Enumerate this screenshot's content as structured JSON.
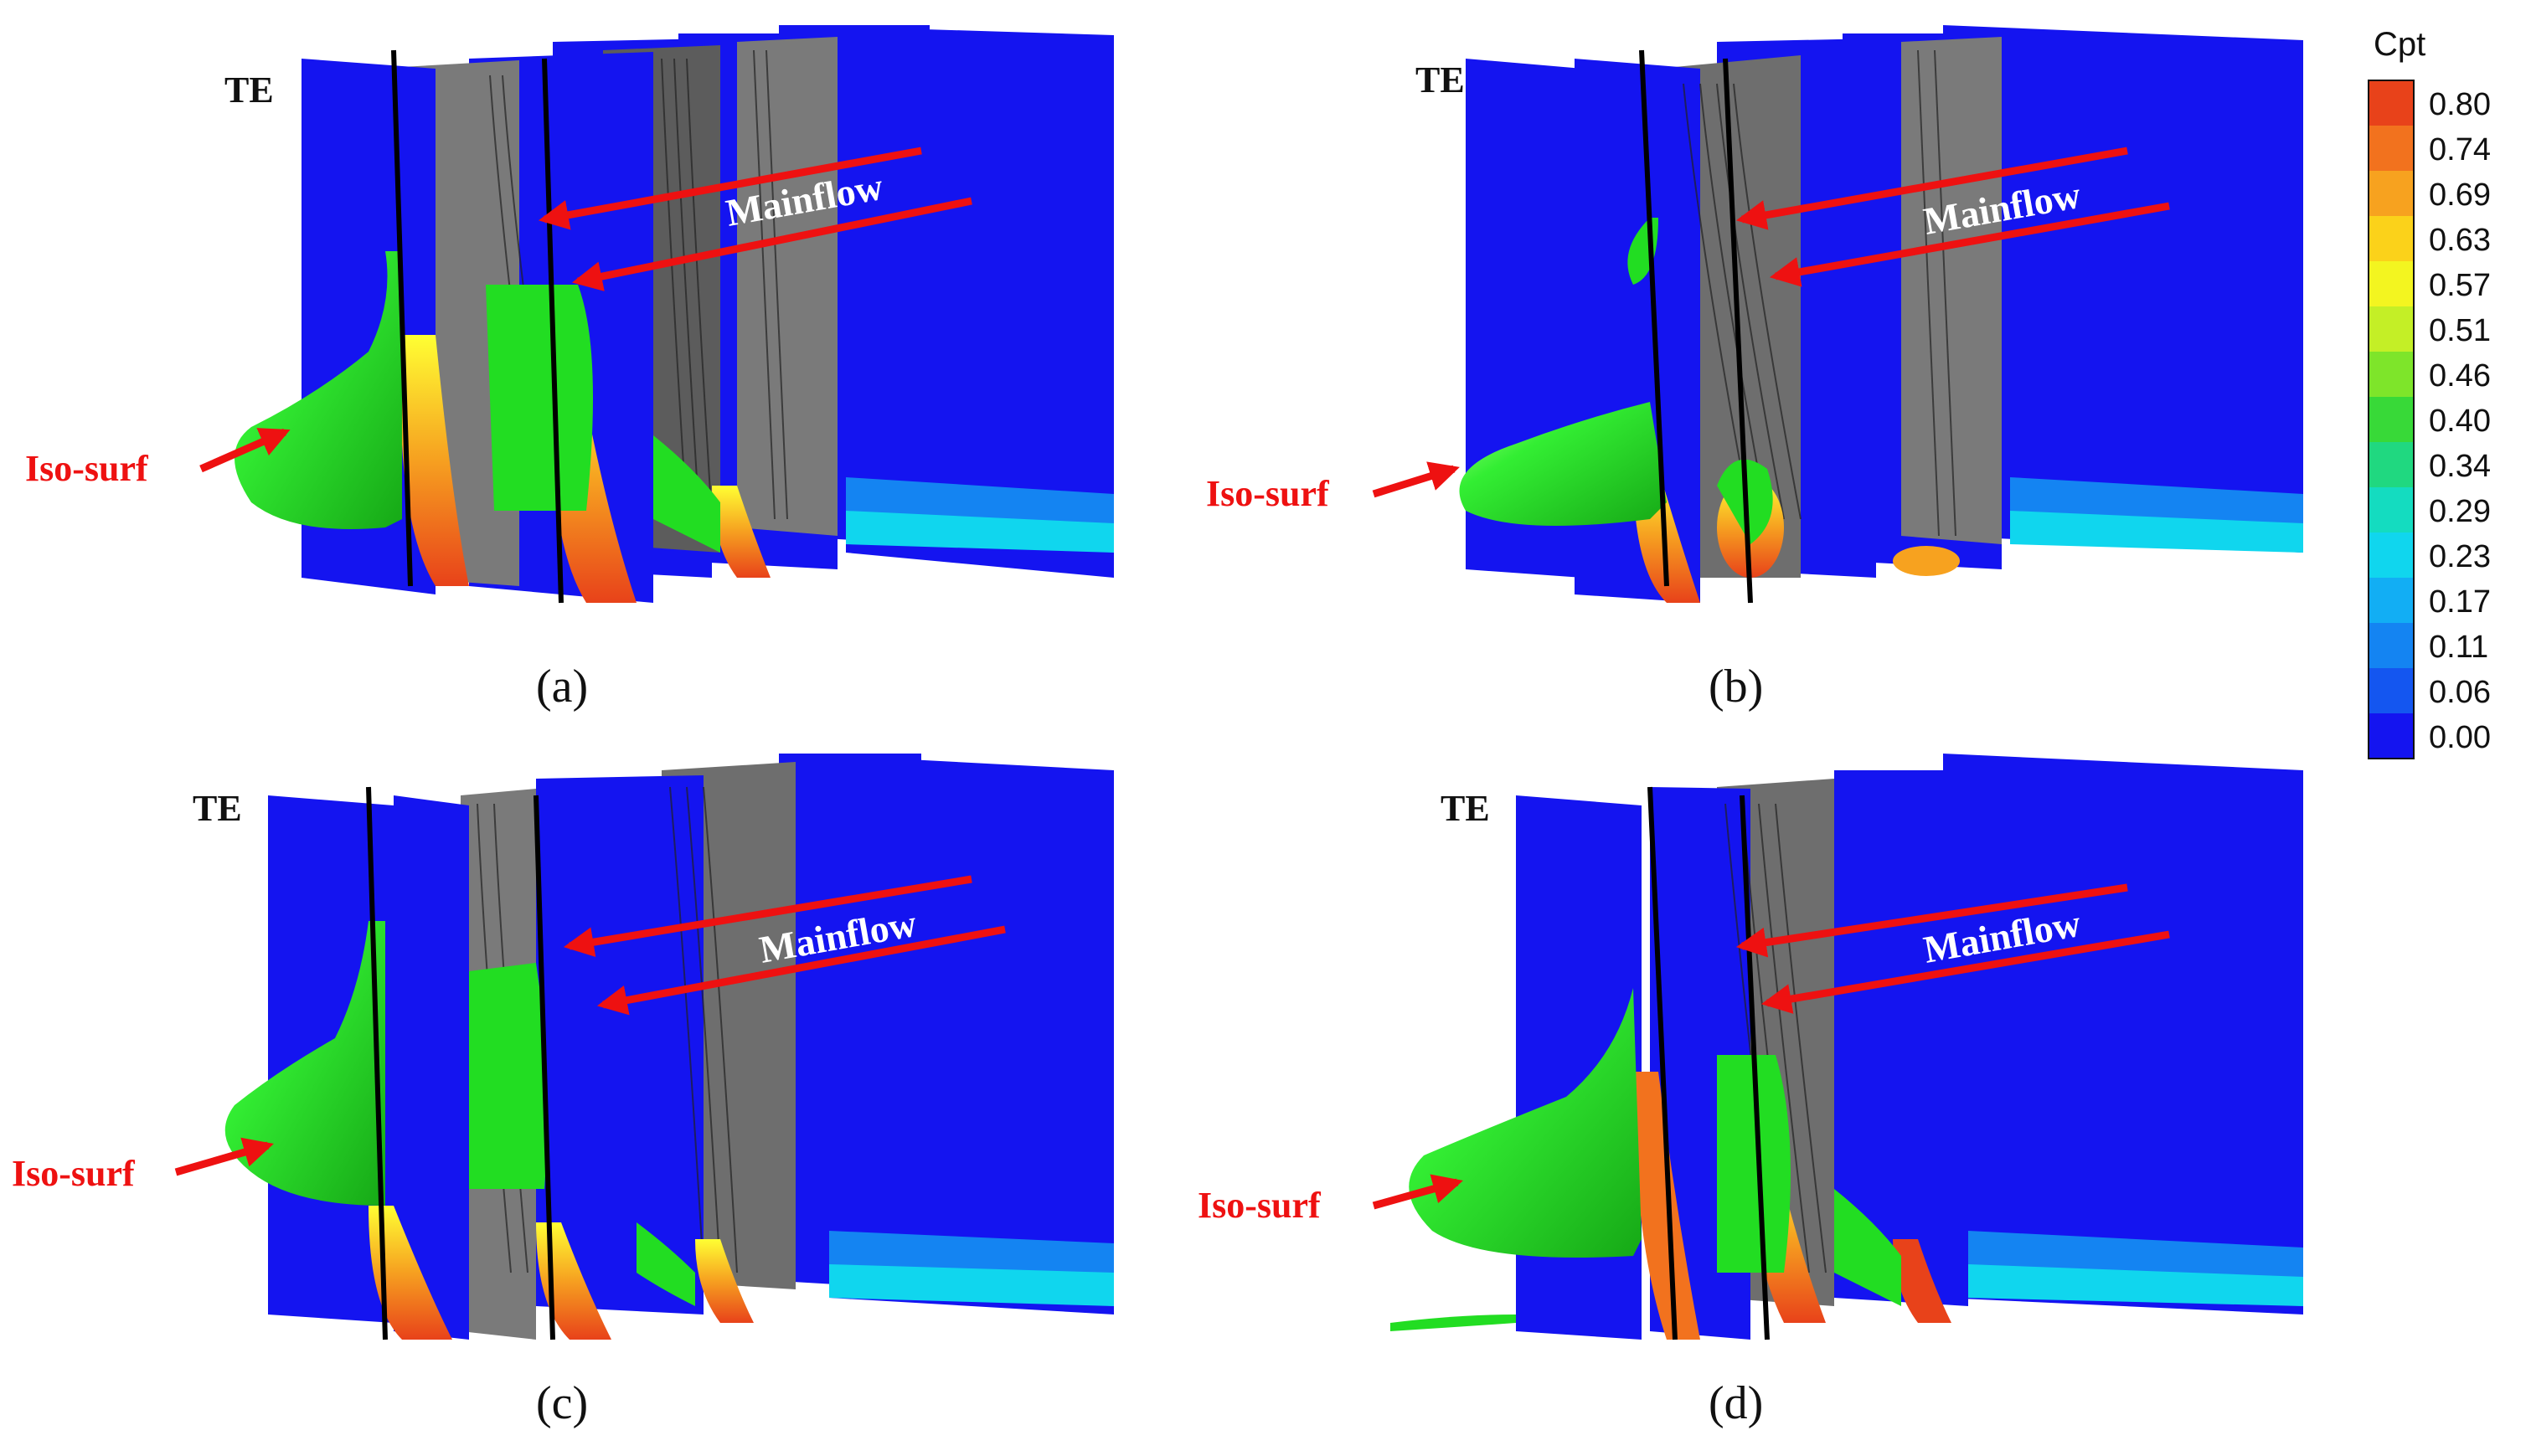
{
  "colors": {
    "blade_blue": "#1414f0",
    "gray_surface": "#7a7a7a",
    "dark_gray": "#3c3c3c",
    "isosurface_green": "#22dd22",
    "arrow_red": "#ee1111",
    "mainflow_text": "#ffffff"
  },
  "panels": [
    {
      "caption": "(a)",
      "te_label": "TE",
      "mainflow_label": "Mainflow",
      "isosurf_label": "Iso-surf"
    },
    {
      "caption": "(b)",
      "te_label": "TE",
      "mainflow_label": "Mainflow",
      "isosurf_label": "Iso-surf"
    },
    {
      "caption": "(c)",
      "te_label": "TE",
      "mainflow_label": "Mainflow",
      "isosurf_label": "Iso-surf"
    },
    {
      "caption": "(d)",
      "te_label": "TE",
      "mainflow_label": "Mainflow",
      "isosurf_label": "Iso-surf"
    }
  ],
  "colorbar": {
    "title": "Cpt",
    "levels": [
      {
        "value": "0.80",
        "color": "#e8421a"
      },
      {
        "value": "0.74",
        "color": "#f2721e"
      },
      {
        "value": "0.69",
        "color": "#f7a21f"
      },
      {
        "value": "0.63",
        "color": "#fbd21a"
      },
      {
        "value": "0.57",
        "color": "#f3f520"
      },
      {
        "value": "0.51",
        "color": "#c4ef26"
      },
      {
        "value": "0.46",
        "color": "#7ee52a"
      },
      {
        "value": "0.40",
        "color": "#38d938"
      },
      {
        "value": "0.34",
        "color": "#20d880"
      },
      {
        "value": "0.29",
        "color": "#14dcc0"
      },
      {
        "value": "0.23",
        "color": "#10d6ee"
      },
      {
        "value": "0.17",
        "color": "#12aef4"
      },
      {
        "value": "0.11",
        "color": "#1484f2"
      },
      {
        "value": "0.06",
        "color": "#1456f0"
      },
      {
        "value": "0.00",
        "color": "#1414f0"
      }
    ]
  }
}
